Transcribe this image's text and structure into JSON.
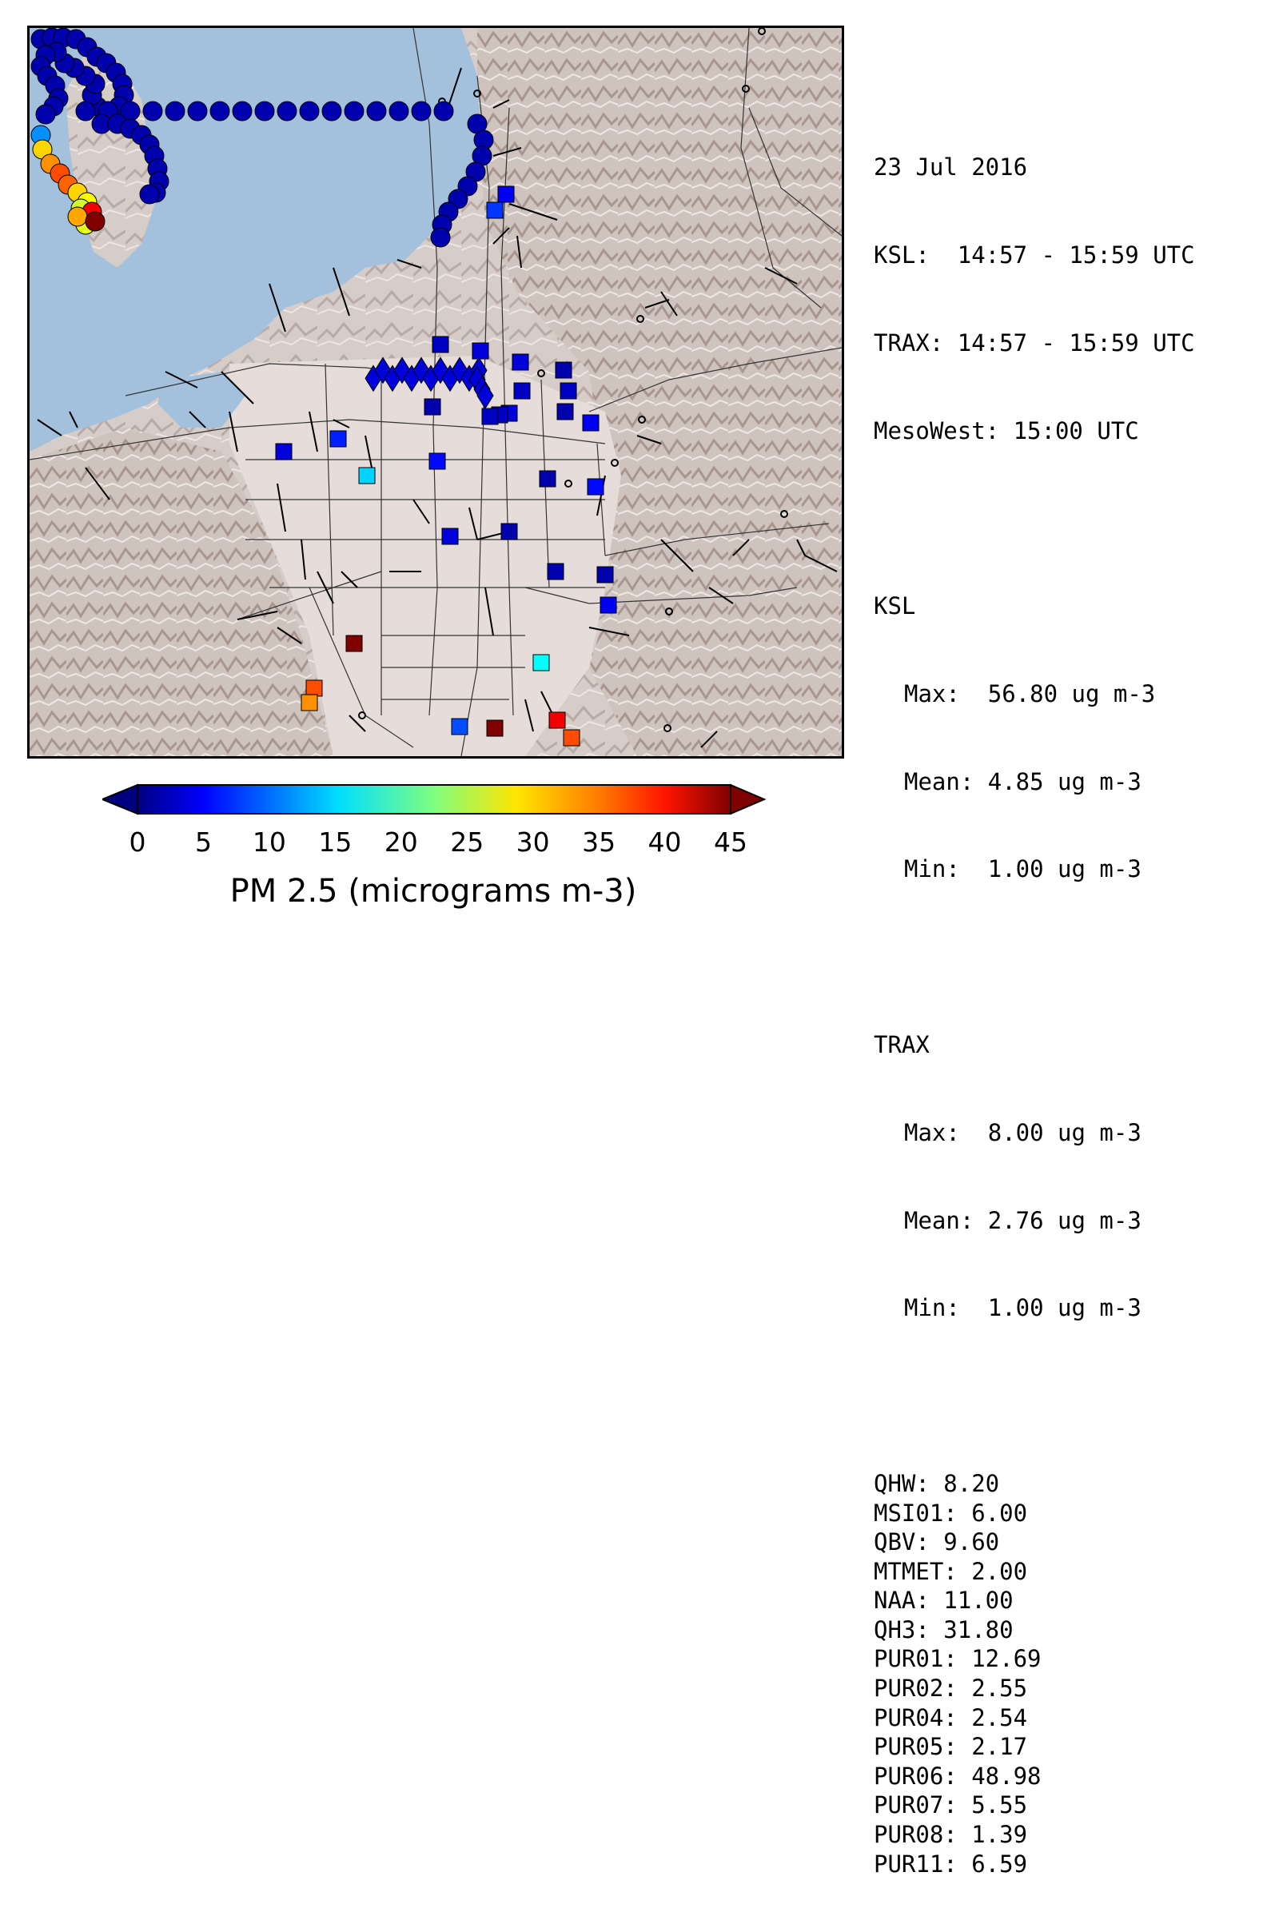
{
  "header": {
    "date": "23 Jul 2016",
    "ksl_time": "KSL:  14:57 - 15:59 UTC",
    "trax_time": "TRAX: 14:57 - 15:59 UTC",
    "mesowest_time": "MesoWest: 15:00 UTC"
  },
  "ksl": {
    "label": "KSL",
    "max": "Max:  56.80 ug m-3",
    "mean": "Mean: 4.85 ug m-3",
    "min": "Min:  1.00 ug m-3"
  },
  "trax": {
    "label": "TRAX",
    "max": "Max:  8.00 ug m-3",
    "mean": "Mean: 2.76 ug m-3",
    "min": "Min:  1.00 ug m-3"
  },
  "stations": [
    "QHW: 8.20",
    "MSI01: 6.00",
    "QBV: 9.60",
    "MTMET: 2.00",
    "NAA: 11.00",
    "QH3: 31.80",
    "PUR01: 12.69",
    "PUR02: 2.55",
    "PUR04: 2.54",
    "PUR05: 2.17",
    "PUR06: 48.98",
    "PUR07: 5.55",
    "PUR08: 1.39",
    "PUR11: 6.59"
  ],
  "colorbar": {
    "title": "PM 2.5 (micrograms m-3)",
    "min": 0,
    "max": 45,
    "ticks": [
      "0",
      "5",
      "10",
      "15",
      "20",
      "25",
      "30",
      "35",
      "40",
      "45"
    ],
    "colormap": "jet"
  },
  "colors": {
    "lake": "#a3c1dc",
    "land": "#d9cfcb",
    "frame": "#000000"
  }
}
